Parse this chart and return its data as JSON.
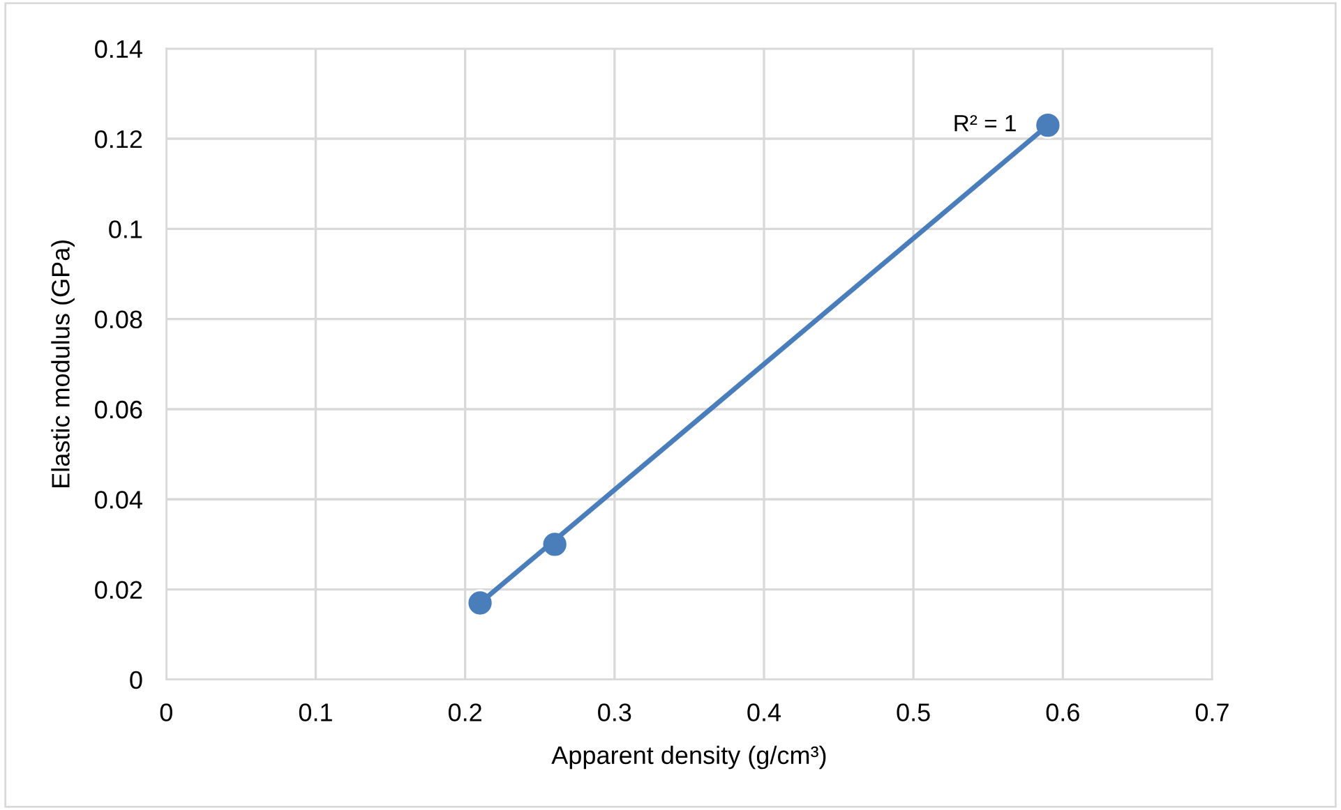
{
  "chart_data": {
    "type": "scatter",
    "xlabel": "Apparent density (g/cm³)",
    "ylabel": "Elastic modulus (GPa)",
    "series": [
      {
        "color": "#4a7ebb",
        "x": [
          0.21,
          0.26,
          0.59
        ],
        "values": [
          0.017,
          0.03,
          0.123
        ],
        "marker": "circle"
      },
      {
        "type": "line",
        "color": "#4a7ebb",
        "x": [
          0.21,
          0.59
        ],
        "values": [
          0.017,
          0.123
        ],
        "marker": "none"
      }
    ],
    "annotations": [
      {
        "text": "R² = 1",
        "x": 0.59,
        "y": 0.123
      }
    ],
    "xlim": [
      0,
      0.7
    ],
    "xticks": [
      0,
      0.1,
      0.2,
      0.3,
      0.4,
      0.5,
      0.6,
      0.7
    ],
    "ylim": [
      0,
      0.14
    ],
    "yticks": [
      0,
      0.02,
      0.04,
      0.06,
      0.08,
      0.1,
      0.12,
      0.14
    ],
    "grid": true,
    "legend": false
  }
}
